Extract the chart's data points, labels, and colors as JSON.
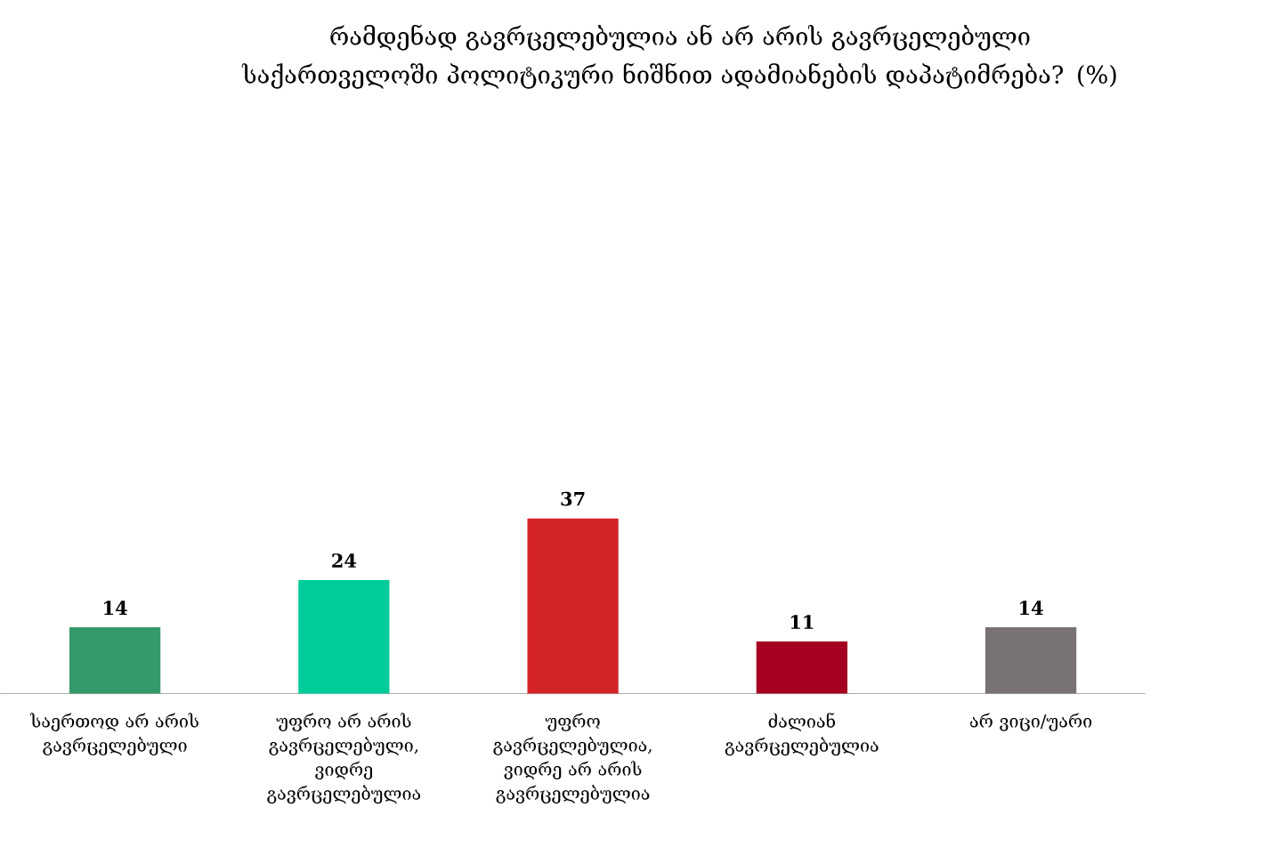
{
  "chart_data": {
    "type": "bar",
    "title": "რამდენად გავრცელებულია ან არ არის გავრცელებული საქართველოში პოლიტიკური ნიშნით ადამიანების დაპატიმრება? (%)",
    "categories": [
      "საერთოდ არ არის გავრცელებული",
      "უფრო არ არის გავრცელებული, ვიდრე გავრცელებულია",
      "უფრო გავრცელებულია, ვიდრე არ არის გავრცელებულია",
      "ძალიან გავრცელებულია",
      "არ ვიცი/უარი"
    ],
    "values": [
      14,
      24,
      37,
      11,
      14
    ],
    "colors": [
      "#359a6b",
      "#00cc99",
      "#d42428",
      "#a50021",
      "#787372"
    ],
    "data_labels": true
  }
}
